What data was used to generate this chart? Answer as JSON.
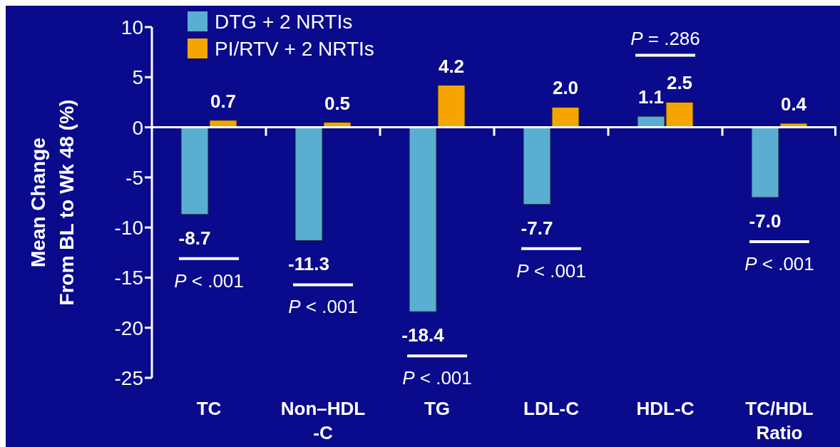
{
  "chart_data": {
    "type": "bar",
    "ylabel": "Mean Change\nFrom BL to Wk 48 (%)",
    "categories": [
      "TC",
      "Non–HDL\n-C",
      "TG",
      "LDL-C",
      "HDL-C",
      "TC/HDL\nRatio"
    ],
    "series": [
      {
        "name": "DTG + 2 NRTIs",
        "color": "#5aaed2",
        "values": [
          -8.7,
          -11.3,
          -18.4,
          -7.7,
          1.1,
          -7.0
        ],
        "value_labels": [
          "-8.7",
          "-11.3",
          "-18.4",
          "-7.7",
          "1.1",
          "-7.0"
        ]
      },
      {
        "name": "PI/RTV + 2 NRTIs",
        "color": "#f5a500",
        "values": [
          0.7,
          0.5,
          4.2,
          2.0,
          2.5,
          0.4
        ],
        "value_labels": [
          "0.7",
          "0.5",
          "4.2",
          "2.0",
          "2.5",
          "0.4"
        ]
      }
    ],
    "ylim": [
      -25,
      10
    ],
    "yticks": [
      -25,
      -20,
      -15,
      -10,
      -5,
      0,
      5,
      10
    ],
    "legend": "top left",
    "annotations": [
      "P < .001",
      "P < .001",
      "P < .001",
      "P < .001",
      "P = .286",
      "P < .001"
    ]
  }
}
